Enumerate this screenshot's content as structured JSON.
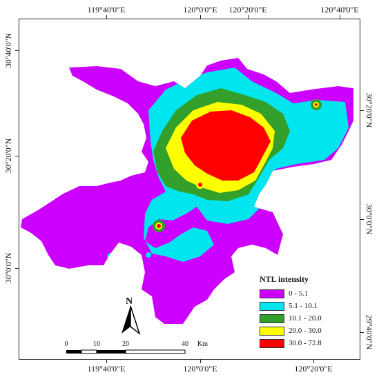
{
  "map": {
    "axes": {
      "top": [
        "119°40'0\"E",
        "120°0'0\"E",
        "120°20'0\"E",
        "120°40'0\"E"
      ],
      "bottom": [
        "119°40'0\"E",
        "120°0'0\"E",
        "120°20'0\"E"
      ],
      "left": [
        "30°40'0\"N",
        "30°20'0\"N",
        "30°0'0\"N"
      ],
      "right": [
        "30°20'0\"N",
        "30°0'0\"N",
        "29°40'0\"N"
      ]
    },
    "legend": {
      "title": "NTL intensity",
      "items": [
        {
          "label": "0 - 5.1",
          "color": "#cc00ff"
        },
        {
          "label": "5.1 - 10.1",
          "color": "#00e5ee"
        },
        {
          "label": "10.1 - 20.0",
          "color": "#33a02c"
        },
        {
          "label": "20.0 - 30.0",
          "color": "#ffff00"
        },
        {
          "label": "30.0 - 72.8",
          "color": "#ff0000"
        }
      ]
    },
    "north_arrow": {
      "label": "N"
    },
    "scale_bar": {
      "ticks": [
        "0",
        "10",
        "20",
        "40"
      ],
      "unit": "Km"
    }
  }
}
